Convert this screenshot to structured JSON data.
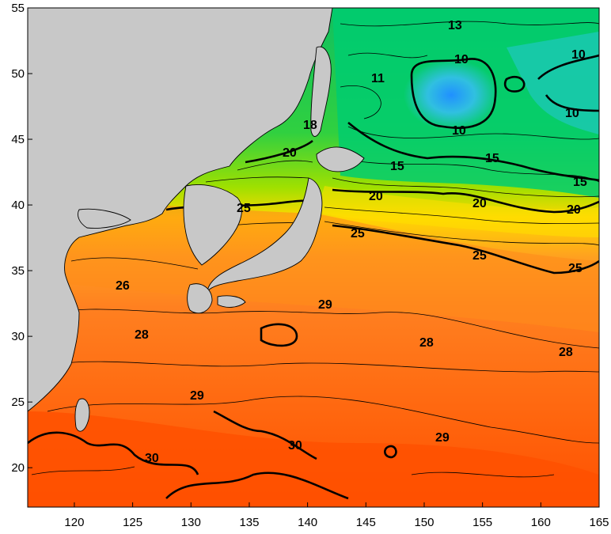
{
  "map": {
    "x_ticks": [
      "120",
      "125",
      "130",
      "135",
      "140",
      "145",
      "150",
      "155",
      "160",
      "165"
    ],
    "y_ticks": [
      "55",
      "50",
      "45",
      "40",
      "35",
      "30",
      "25",
      "20"
    ],
    "contour_labels": [
      "13",
      "10",
      "10",
      "11",
      "10",
      "10",
      "18",
      "20",
      "15",
      "15",
      "15",
      "25",
      "20",
      "20",
      "20",
      "25",
      "25",
      "25",
      "26",
      "29",
      "28",
      "28",
      "28",
      "29",
      "29",
      "30",
      "30"
    ],
    "colors": {
      "land": "#c8c8c8",
      "warmest": "#ff5a00",
      "warm": "#ff8a1a",
      "mild": "#ffd000",
      "temperate": "#40d000",
      "cool": "#00d080",
      "cold": "#30a8ff"
    }
  }
}
